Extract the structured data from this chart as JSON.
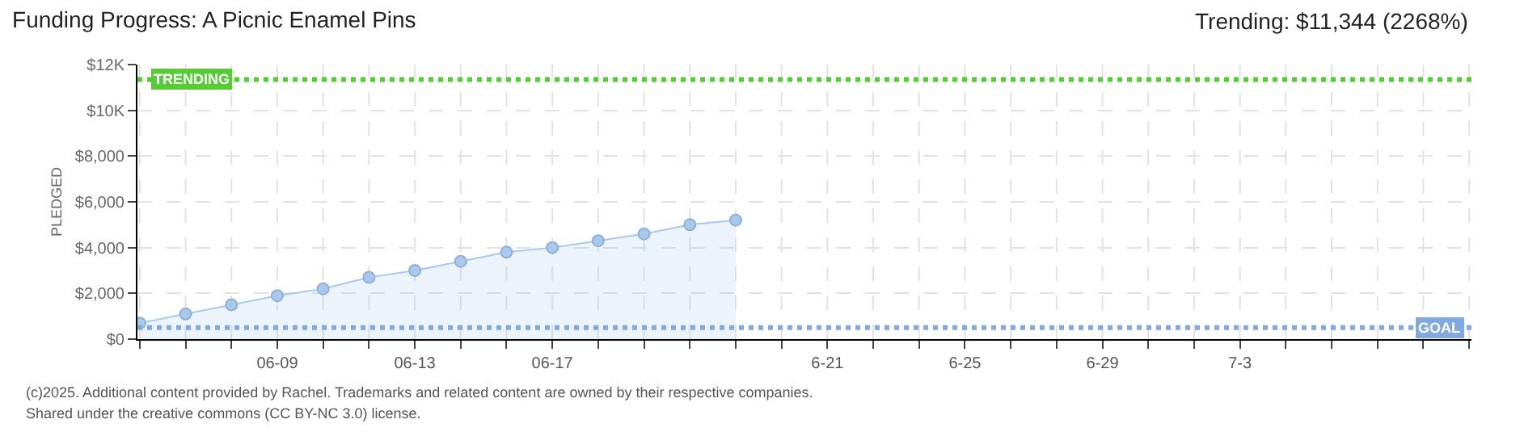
{
  "chart_data": {
    "type": "area",
    "title": "Funding Progress: A Picnic Enamel Pins",
    "subtitle": "Trending: $11,344 (2268%)",
    "ylabel": "PLEDGED",
    "categories": [
      null,
      null,
      null,
      "06-09",
      null,
      null,
      "06-13",
      null,
      null,
      "06-17",
      null,
      null,
      null,
      null,
      null,
      "6-21",
      null,
      null,
      "6-25",
      null,
      null,
      "6-29",
      null,
      null,
      "7-3",
      null,
      null,
      null,
      null,
      null
    ],
    "series": [
      {
        "color": "#a9c9ec",
        "values": [
          700,
          1100,
          1500,
          1900,
          2200,
          2700,
          3000,
          3400,
          3800,
          4000,
          4300,
          4600,
          5000,
          5200,
          null,
          null,
          null,
          null,
          null,
          null,
          null,
          null,
          null,
          null,
          null,
          null,
          null,
          null,
          null,
          null
        ]
      }
    ],
    "ylim": [
      0,
      12000
    ],
    "yticks": [
      {
        "value": 0,
        "label": "$0"
      },
      {
        "value": 2000,
        "label": "$2,000"
      },
      {
        "value": 4000,
        "label": "$4,000"
      },
      {
        "value": 6000,
        "label": "$6,000"
      },
      {
        "value": 8000,
        "label": "$8,000"
      },
      {
        "value": 10000,
        "label": "$10K"
      },
      {
        "value": 12000,
        "label": "$12K"
      }
    ],
    "ref_lines": [
      {
        "axis": "y",
        "value": 11344,
        "label": "TRENDING",
        "color": "#55cc33",
        "line_style": "dotted"
      },
      {
        "axis": "y",
        "value": 500,
        "label": "GOAL",
        "color": "#7fa9e0",
        "line_style": "dotted"
      }
    ],
    "annotations": [
      "(c)2025. Additional content provided by Rachel. Trademarks and related content are owned by their respective companies.",
      "Shared under the creative commons (CC BY-NC 3.0) license."
    ],
    "grid": true,
    "marker": "circle"
  }
}
